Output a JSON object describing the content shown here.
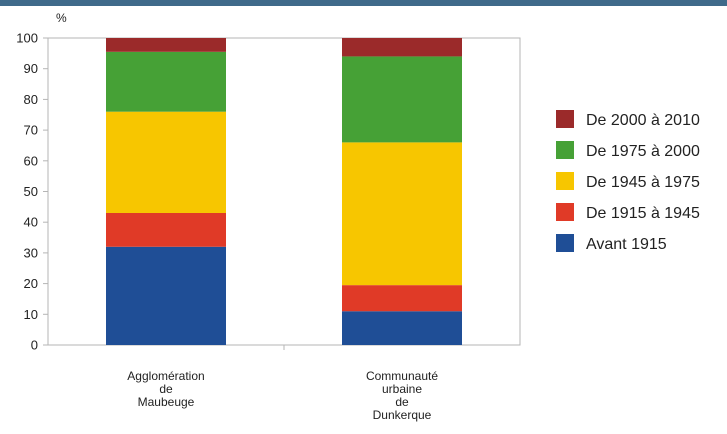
{
  "chart_data": {
    "type": "bar",
    "stacked": true,
    "ylabel": "%",
    "ylim": [
      0,
      100
    ],
    "yticks": [
      0,
      10,
      20,
      30,
      40,
      50,
      60,
      70,
      80,
      90,
      100
    ],
    "grid": false,
    "legend_position": "right",
    "categories": [
      [
        "Agglomération",
        "de",
        "Maubeuge"
      ],
      [
        "Communauté",
        "urbaine",
        "de",
        "Dunkerque"
      ]
    ],
    "series": [
      {
        "name": "Avant 1915",
        "color": "#1f4e96",
        "values": [
          32,
          11
        ]
      },
      {
        "name": "De 1915 à 1945",
        "color": "#e03a27",
        "values": [
          11,
          8.5
        ]
      },
      {
        "name": "De 1945 à 1975",
        "color": "#f7c600",
        "values": [
          33,
          46.5
        ]
      },
      {
        "name": "De 1975 à 2000",
        "color": "#46a136",
        "values": [
          19.5,
          28
        ]
      },
      {
        "name": "De 2000 à 2010",
        "color": "#9b2a2a",
        "values": [
          4.5,
          6
        ]
      }
    ]
  }
}
